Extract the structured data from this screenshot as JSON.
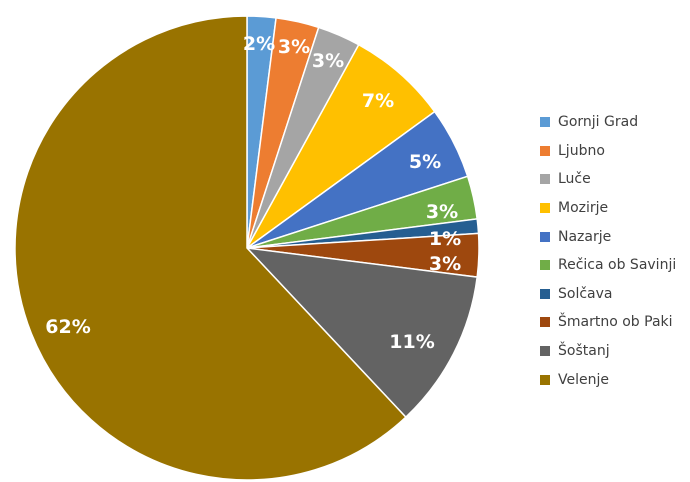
{
  "chart_data": {
    "type": "pie",
    "categories": [
      "Gornji Grad",
      "Ljubno",
      "Luče",
      "Mozirje",
      "Nazarje",
      "Rečica ob Savinji",
      "Solčava",
      "Šmartno ob Paki",
      "Šoštanj",
      "Velenje"
    ],
    "values": [
      2,
      3,
      3,
      7,
      5,
      3,
      1,
      3,
      11,
      62
    ],
    "data_labels": [
      "2%",
      "3%",
      "3%",
      "7%",
      "5%",
      "3%",
      "1%",
      "3%",
      "11%",
      "62%"
    ],
    "colors": [
      "#5B9BD5",
      "#ED7D31",
      "#A5A5A5",
      "#FFC000",
      "#4472C4",
      "#70AD47",
      "#255E91",
      "#9E480E",
      "#636363",
      "#997300"
    ],
    "start_angle": "12 o'clock",
    "direction": "clockwise",
    "legend_position": "right"
  }
}
